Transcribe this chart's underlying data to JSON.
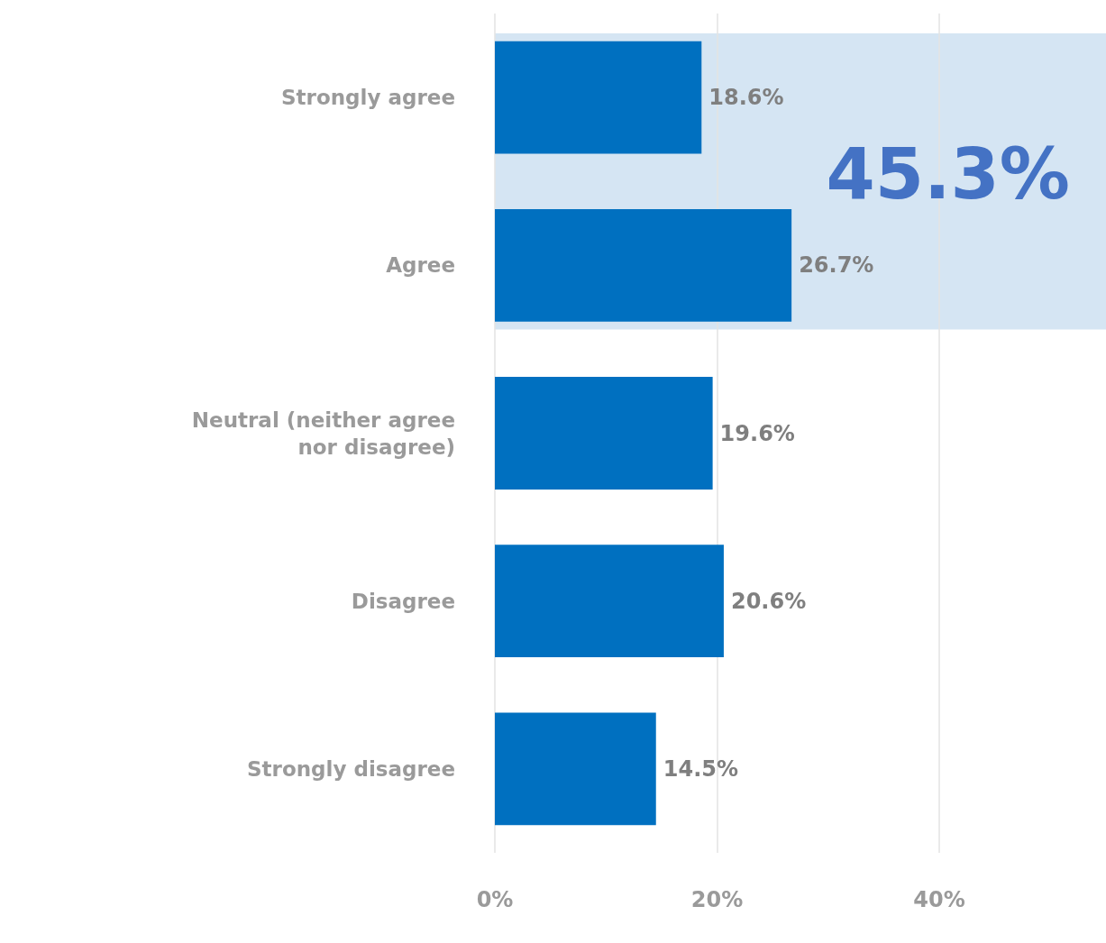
{
  "chart_data": {
    "type": "bar",
    "orientation": "horizontal",
    "categories": [
      "Strongly agree",
      "Agree",
      "Neutral (neither agree nor disagree)",
      "Disagree",
      "Strongly disagree"
    ],
    "values": [
      18.6,
      26.7,
      19.6,
      20.6,
      14.5
    ],
    "value_labels": [
      "18.6%",
      "26.7%",
      "19.6%",
      "20.6%",
      "14.5%"
    ],
    "color": "#0070c0",
    "xlim": [
      0,
      55
    ],
    "xticks": [
      {
        "value": 0,
        "label": "0%"
      },
      {
        "value": 20,
        "label": "20%"
      },
      {
        "value": 40,
        "label": "40%"
      }
    ],
    "grid": "x",
    "bands": [
      {
        "axis": "y",
        "from": "Strongly agree",
        "to": "Agree",
        "label": "45.3%",
        "color": "#d5e5f3"
      }
    ]
  }
}
